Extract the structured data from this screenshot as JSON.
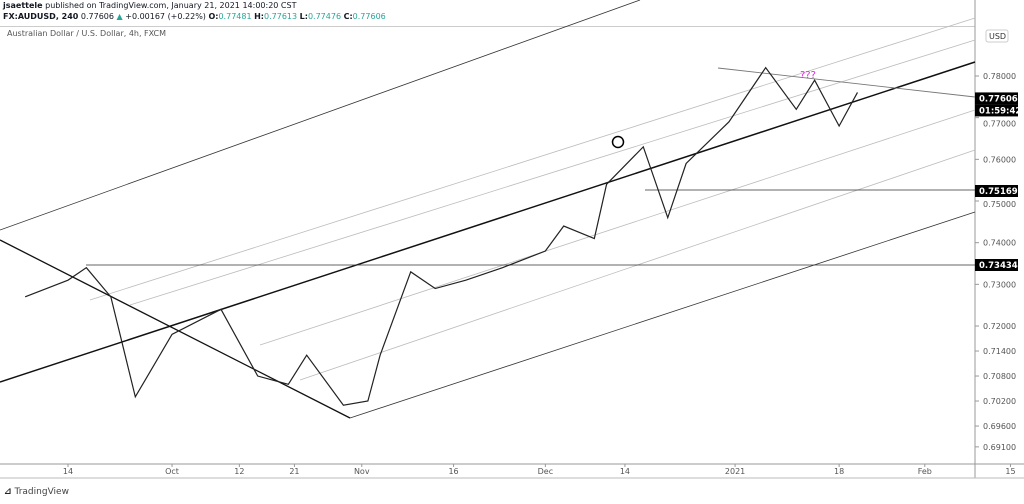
{
  "header": {
    "author": "jsaettele",
    "published": "published on TradingView.com, January 21, 2021 14:00:20 CST",
    "symbol": "FX:AUDUSD, 240",
    "last": "0.77606",
    "change": "+0.00167 (+0.22%)",
    "o_label": "O:",
    "o": "0.77481",
    "h_label": "H:",
    "h": "0.77613",
    "l_label": "L:",
    "l": "0.77476",
    "c_label": "C:",
    "c": "0.77606"
  },
  "chart_title": "Australian Dollar / U.S. Dollar, 4h, FXCM",
  "currency": "USD",
  "logo": "TradingView",
  "colors": {
    "up": "#26a69a",
    "annotation": "#e91ee9",
    "label_bg": "#000000"
  },
  "chart_data": {
    "type": "line",
    "title": "Australian Dollar / U.S. Dollar, 4h, FXCM",
    "y_ticks": [
      "0.78000",
      "0.77000",
      "0.76000",
      "0.75000",
      "0.74000",
      "0.73000",
      "0.72000",
      "0.71400",
      "0.70800",
      "0.70200",
      "0.69600",
      "0.69100"
    ],
    "y_tick_values": [
      0.78,
      0.77,
      0.76,
      0.75,
      0.74,
      0.73,
      0.72,
      0.714,
      0.708,
      0.702,
      0.696,
      0.691
    ],
    "x_ticks": [
      "14",
      "Oct",
      "12",
      "21",
      "Nov",
      "16",
      "Dec",
      "14",
      "2021",
      "18",
      "Feb",
      "15"
    ],
    "x_tick_dates": [
      "2020-09-14",
      "2020-10-01",
      "2020-10-12",
      "2020-10-21",
      "2020-11-01",
      "2020-11-16",
      "2020-12-01",
      "2020-12-14",
      "2021-01-01",
      "2021-01-18",
      "2021-02-01",
      "2021-02-15"
    ],
    "series": [
      {
        "x": [
          "2020-09-07",
          "2020-09-14",
          "2020-09-17",
          "2020-09-21",
          "2020-09-25",
          "2020-10-01",
          "2020-10-09",
          "2020-10-15",
          "2020-10-20",
          "2020-10-23",
          "2020-10-29",
          "2020-11-02",
          "2020-11-04",
          "2020-11-09",
          "2020-11-13",
          "2020-11-18",
          "2020-11-24",
          "2020-12-01",
          "2020-12-04",
          "2020-12-09",
          "2020-12-11",
          "2020-12-17",
          "2020-12-21",
          "2020-12-24",
          "2020-12-31",
          "2021-01-06",
          "2021-01-11",
          "2021-01-14",
          "2021-01-18",
          "2021-01-21"
        ],
        "y": [
          0.727,
          0.731,
          0.734,
          0.727,
          0.703,
          0.718,
          0.724,
          0.708,
          0.706,
          0.713,
          0.701,
          0.702,
          0.713,
          0.733,
          0.729,
          0.731,
          0.734,
          0.738,
          0.744,
          0.741,
          0.754,
          0.763,
          0.746,
          0.759,
          0.769,
          0.782,
          0.772,
          0.779,
          0.768,
          0.77606
        ]
      }
    ],
    "price_labels": [
      {
        "value": "0.77606"
      },
      {
        "value": "01:59:42"
      },
      {
        "value": "0.75169"
      },
      {
        "value": "0.73434"
      }
    ],
    "annotations": [
      "???"
    ],
    "grid": false
  }
}
